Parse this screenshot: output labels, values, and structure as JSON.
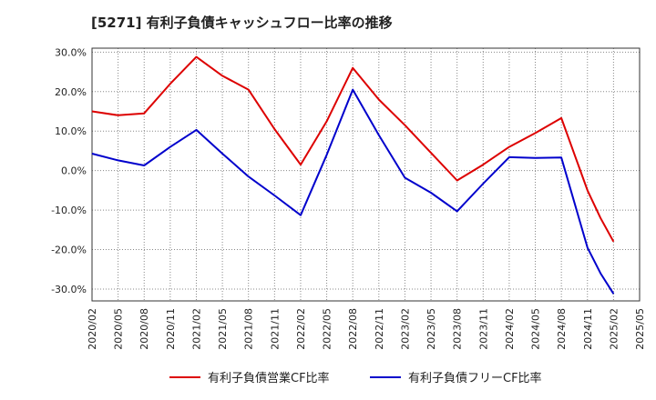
{
  "chart_data": {
    "type": "line",
    "title": "[5271]  有利子負債キャッシュフロー比率の推移",
    "xlabel": "",
    "ylabel": "",
    "categories": [
      "2020/02",
      "2020/05",
      "2020/08",
      "2020/11",
      "2021/02",
      "2021/05",
      "2021/08",
      "2021/11",
      "2022/02",
      "2022/05",
      "2022/08",
      "2022/11",
      "2023/02",
      "2023/05",
      "2023/08",
      "2023/11",
      "2024/02",
      "2024/05",
      "2024/08",
      "2024/11",
      "2025/02",
      "2025/05"
    ],
    "ylim": [
      -33,
      31
    ],
    "yticks": [
      30,
      20,
      10,
      0,
      -10,
      -20,
      -30
    ],
    "ytick_labels": [
      "30.0%",
      "20.0%",
      "10.0%",
      "0.0%",
      "-10.0%",
      "-20.0%",
      "-30.0%"
    ],
    "grid": true,
    "legend_position": "bottom",
    "series": [
      {
        "name": "有利子負債営業CF比率",
        "color": "#dd0000",
        "points": [
          [
            0,
            15.0
          ],
          [
            1,
            14.0
          ],
          [
            2,
            14.5
          ],
          [
            3,
            22.0
          ],
          [
            4,
            28.8
          ],
          [
            5,
            24.0
          ],
          [
            6,
            20.5
          ],
          [
            7,
            10.5
          ],
          [
            8,
            1.5
          ],
          [
            9,
            12.5
          ],
          [
            10,
            26.0
          ],
          [
            11,
            18.0
          ],
          [
            12,
            11.5
          ],
          [
            13,
            4.5
          ],
          [
            14,
            -2.5
          ],
          [
            15,
            1.5
          ],
          [
            16,
            6.0
          ],
          [
            17,
            9.5
          ],
          [
            18,
            13.3
          ],
          [
            19,
            -5.0
          ],
          [
            19.5,
            -12.0
          ],
          [
            20,
            -18.0
          ]
        ]
      },
      {
        "name": "有利子負債フリーCF比率",
        "color": "#0000cc",
        "points": [
          [
            0,
            4.3
          ],
          [
            1,
            2.6
          ],
          [
            2,
            1.3
          ],
          [
            3,
            6.0
          ],
          [
            4,
            10.3
          ],
          [
            5,
            4.3
          ],
          [
            6,
            -1.5
          ],
          [
            7,
            -6.3
          ],
          [
            8,
            -11.3
          ],
          [
            9,
            4.0
          ],
          [
            10,
            20.5
          ],
          [
            11,
            9.0
          ],
          [
            12,
            -1.8
          ],
          [
            13,
            -5.6
          ],
          [
            14,
            -10.3
          ],
          [
            15,
            -3.3
          ],
          [
            16,
            3.4
          ],
          [
            17,
            3.2
          ],
          [
            18,
            3.3
          ],
          [
            19,
            -19.5
          ],
          [
            19.5,
            -26.0
          ],
          [
            20,
            -31.2
          ]
        ]
      }
    ]
  }
}
